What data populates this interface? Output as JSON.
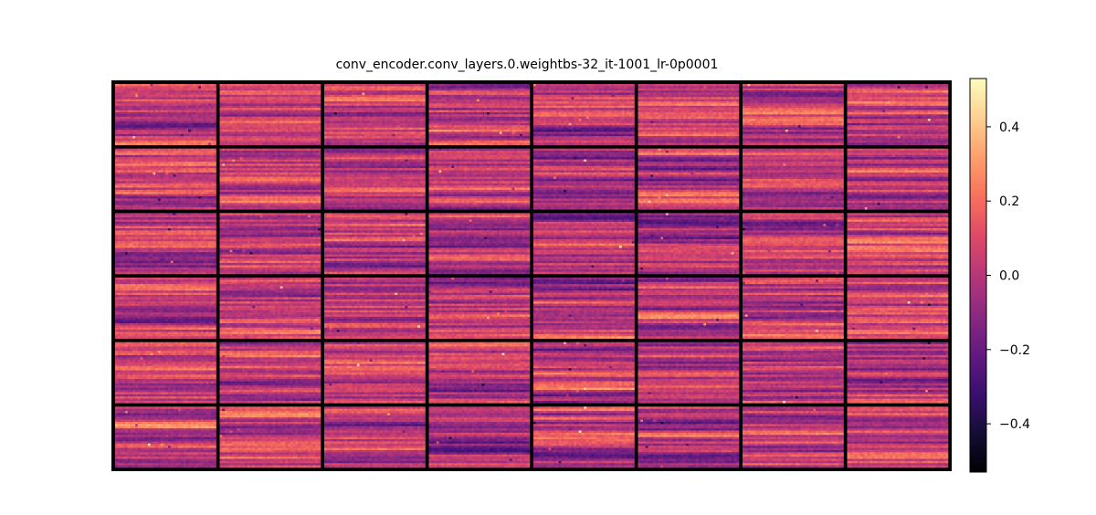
{
  "chart_data": {
    "type": "heatmap",
    "title": "conv_encoder.conv_layers.0.weightbs-32_it-1001_lr-0p0001",
    "xlabel": "",
    "ylabel": "",
    "grid_rows": 6,
    "grid_cols": 8,
    "tile_pixels": [
      40,
      28
    ],
    "colormap": "magma",
    "colorbar": {
      "vmin": -0.53,
      "vmax": 0.53,
      "ticks": [
        0.4,
        0.2,
        0.0,
        -0.2,
        -0.4
      ],
      "tick_labels": [
        "0.4",
        "0.2",
        "0.0",
        "−0.2",
        "−0.4"
      ],
      "placement": "right"
    },
    "tile_value_range": [
      -0.5,
      0.5
    ],
    "grid": false,
    "separator_color": "#000000",
    "background_color": "#ffffff"
  }
}
